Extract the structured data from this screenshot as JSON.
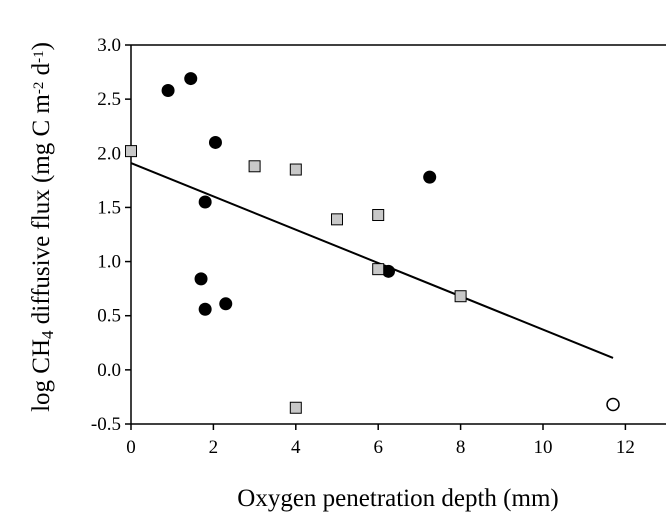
{
  "chart_data": {
    "type": "scatter",
    "xlabel": "Oxygen penetration depth (mm)",
    "ylabel": {
      "parts": [
        "log CH",
        "4",
        " diffusive flux (mg C m",
        "-2",
        " d",
        "-1",
        ")"
      ]
    },
    "xlim": [
      0,
      13
    ],
    "ylim": [
      -0.5,
      3.0
    ],
    "xticks": [
      "0",
      "2",
      "4",
      "6",
      "8",
      "10",
      "12"
    ],
    "yticks": [
      "-0.5",
      "0.0",
      "0.5",
      "1.0",
      "1.5",
      "2.0",
      "2.5",
      "3.0"
    ],
    "grid": false,
    "legend": "none",
    "series": [
      {
        "marker": "filled-circle",
        "color": "#000000",
        "points": [
          {
            "x": 0.9,
            "y": 2.58
          },
          {
            "x": 1.45,
            "y": 2.69
          },
          {
            "x": 2.05,
            "y": 2.1
          },
          {
            "x": 1.8,
            "y": 1.55
          },
          {
            "x": 1.7,
            "y": 0.84
          },
          {
            "x": 1.8,
            "y": 0.56
          },
          {
            "x": 2.3,
            "y": 0.61
          },
          {
            "x": 6.25,
            "y": 0.91
          },
          {
            "x": 7.25,
            "y": 1.78
          }
        ]
      },
      {
        "marker": "gray-square",
        "color": "#c8c8c8",
        "points": [
          {
            "x": 0.0,
            "y": 2.02
          },
          {
            "x": 3.0,
            "y": 1.88
          },
          {
            "x": 4.0,
            "y": 1.85
          },
          {
            "x": 5.0,
            "y": 1.39
          },
          {
            "x": 6.0,
            "y": 1.43
          },
          {
            "x": 6.0,
            "y": 0.93
          },
          {
            "x": 8.0,
            "y": 0.68
          },
          {
            "x": 4.0,
            "y": -0.35
          }
        ]
      },
      {
        "marker": "open-circle",
        "color": "#ffffff",
        "points": [
          {
            "x": 11.7,
            "y": -0.32
          }
        ]
      }
    ],
    "regression_line": {
      "x": [
        0,
        11.7
      ],
      "y": [
        1.91,
        0.11
      ]
    }
  }
}
